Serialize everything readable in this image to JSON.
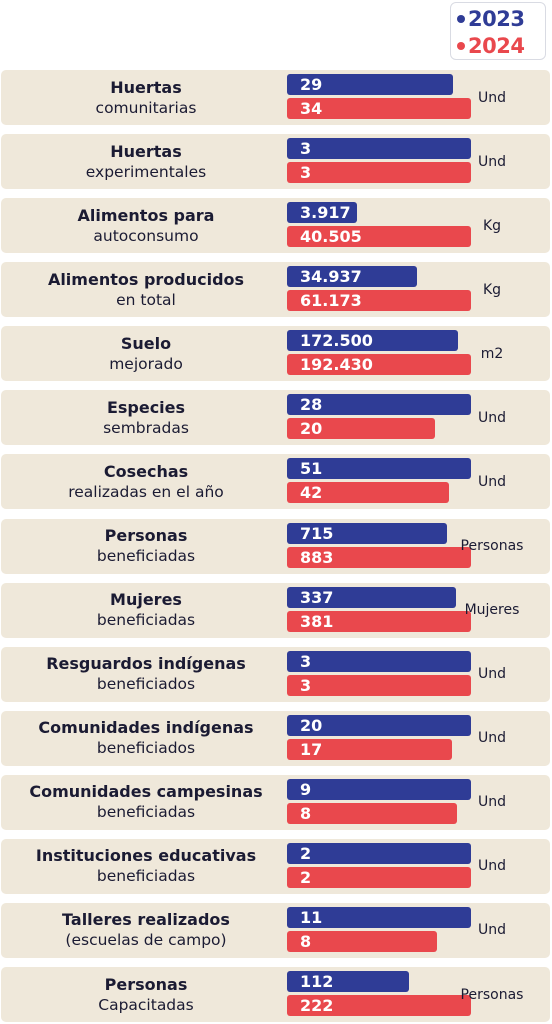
{
  "legend": {
    "series_2023": "2023",
    "series_2024": "2024"
  },
  "colors": {
    "series_2023": "#2f3c96",
    "series_2024": "#e9484d",
    "row_background": "#efe8da",
    "text": "#1b1b33"
  },
  "chart_data": {
    "type": "bar",
    "orientation": "horizontal",
    "value_scale": "relative within each row (largest value in a row sets the bar length)",
    "series": [
      {
        "name": "2023",
        "values_display": [
          "29",
          "3",
          "3.917",
          "34.937",
          "172.500",
          "28",
          "51",
          "715",
          "337",
          "3",
          "20",
          "9",
          "2",
          "11",
          "112"
        ],
        "values": [
          29,
          3,
          3917,
          34937,
          172500,
          28,
          51,
          715,
          337,
          3,
          20,
          9,
          2,
          11,
          112
        ]
      },
      {
        "name": "2024",
        "values_display": [
          "34",
          "3",
          "40.505",
          "61.173",
          "192.430",
          "20",
          "42",
          "883",
          "381",
          "3",
          "17",
          "8",
          "2",
          "8",
          "222"
        ],
        "values": [
          34,
          3,
          40505,
          61173,
          192430,
          20,
          42,
          883,
          381,
          3,
          17,
          8,
          2,
          8,
          222
        ]
      }
    ],
    "categories": [
      {
        "title": "Huertas",
        "subtitle": "comunitarias",
        "unit": "Und"
      },
      {
        "title": "Huertas",
        "subtitle": "experimentales",
        "unit": "Und"
      },
      {
        "title": "Alimentos para",
        "subtitle": "autoconsumo",
        "unit": "Kg"
      },
      {
        "title": "Alimentos producidos",
        "subtitle": "en total",
        "unit": "Kg"
      },
      {
        "title": "Suelo",
        "subtitle": "mejorado",
        "unit": "m2"
      },
      {
        "title": "Especies",
        "subtitle": "sembradas",
        "unit": "Und"
      },
      {
        "title": "Cosechas",
        "subtitle": "realizadas en el año",
        "unit": "Und"
      },
      {
        "title": "Personas",
        "subtitle": "beneficiadas",
        "unit": "Personas"
      },
      {
        "title": "Mujeres",
        "subtitle": "beneficiadas",
        "unit": "Mujeres"
      },
      {
        "title": "Resguardos indígenas",
        "subtitle": "beneficiados",
        "unit": "Und"
      },
      {
        "title": "Comunidades indígenas",
        "subtitle": "beneficiados",
        "unit": "Und"
      },
      {
        "title": "Comunidades campesinas",
        "subtitle": "beneficiadas",
        "unit": "Und"
      },
      {
        "title": "Instituciones educativas",
        "subtitle": "beneficiadas",
        "unit": "Und"
      },
      {
        "title": "Talleres realizados",
        "subtitle": "(escuelas de campo)",
        "unit": "Und"
      },
      {
        "title": "Personas",
        "subtitle": "Capacitadas",
        "unit": "Personas"
      }
    ],
    "legend_position": "top-right",
    "grid": false
  }
}
